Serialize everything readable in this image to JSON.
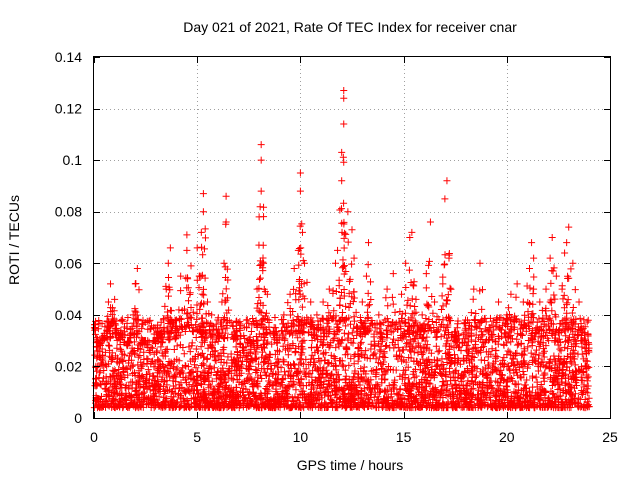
{
  "chart_data": {
    "type": "scatter",
    "title": "Day 021 of 2021, Rate Of TEC Index for receiver cnar",
    "xlabel": "GPS time / hours",
    "ylabel": "ROTI / TECUs",
    "xlim": [
      0,
      25
    ],
    "ylim": [
      0,
      0.14
    ],
    "xticks": [
      0,
      5,
      10,
      15,
      20,
      25
    ],
    "xtick_labels": [
      "0",
      "5",
      "10",
      "15",
      "20",
      "25"
    ],
    "yticks": [
      0,
      0.02,
      0.04,
      0.06,
      0.08,
      0.1,
      0.12,
      0.14
    ],
    "ytick_labels": [
      "0",
      "0.02",
      "0.04",
      "0.06",
      "0.08",
      "0.1",
      "0.12",
      "0.14"
    ],
    "grid": true,
    "marker": "plus",
    "color": "#ff0000",
    "data_extent_hours": [
      0,
      24
    ],
    "baseline_roti": [
      0.004,
      0.03
    ],
    "series": [
      {
        "points": [
          [
            0.2,
            0.026
          ],
          [
            0.5,
            0.032
          ],
          [
            0.7,
            0.045
          ],
          [
            0.8,
            0.052
          ],
          [
            1.0,
            0.046
          ],
          [
            1.3,
            0.034
          ],
          [
            1.6,
            0.028
          ],
          [
            1.9,
            0.04
          ],
          [
            2.0,
            0.052
          ],
          [
            2.1,
            0.058
          ],
          [
            2.5,
            0.03
          ],
          [
            2.9,
            0.03
          ],
          [
            3.2,
            0.035
          ],
          [
            3.5,
            0.05
          ],
          [
            3.6,
            0.06
          ],
          [
            3.7,
            0.066
          ],
          [
            4.0,
            0.038
          ],
          [
            4.2,
            0.055
          ],
          [
            4.5,
            0.065
          ],
          [
            4.5,
            0.071
          ],
          [
            4.7,
            0.059
          ],
          [
            5.0,
            0.066
          ],
          [
            5.1,
            0.055
          ],
          [
            5.2,
            0.072
          ],
          [
            5.3,
            0.08
          ],
          [
            5.3,
            0.087
          ],
          [
            5.5,
            0.045
          ],
          [
            5.7,
            0.04
          ],
          [
            6.0,
            0.038
          ],
          [
            6.3,
            0.06
          ],
          [
            6.4,
            0.086
          ],
          [
            6.4,
            0.076
          ],
          [
            6.8,
            0.033
          ],
          [
            7.2,
            0.022
          ],
          [
            7.6,
            0.028
          ],
          [
            7.9,
            0.05
          ],
          [
            8.0,
            0.078
          ],
          [
            8.1,
            0.088
          ],
          [
            8.1,
            0.1
          ],
          [
            8.1,
            0.106
          ],
          [
            8.2,
            0.067
          ],
          [
            8.4,
            0.048
          ],
          [
            8.8,
            0.035
          ],
          [
            9.2,
            0.04
          ],
          [
            9.5,
            0.048
          ],
          [
            9.7,
            0.058
          ],
          [
            9.9,
            0.065
          ],
          [
            10.0,
            0.088
          ],
          [
            10.0,
            0.095
          ],
          [
            10.1,
            0.072
          ],
          [
            10.2,
            0.06
          ],
          [
            10.5,
            0.045
          ],
          [
            10.8,
            0.04
          ],
          [
            11.1,
            0.045
          ],
          [
            11.4,
            0.05
          ],
          [
            11.7,
            0.06
          ],
          [
            11.8,
            0.065
          ],
          [
            12.0,
            0.092
          ],
          [
            12.0,
            0.103
          ],
          [
            12.1,
            0.114
          ],
          [
            12.1,
            0.124
          ],
          [
            12.1,
            0.127
          ],
          [
            12.3,
            0.08
          ],
          [
            12.5,
            0.073
          ],
          [
            12.6,
            0.062
          ],
          [
            13.0,
            0.045
          ],
          [
            13.2,
            0.055
          ],
          [
            13.3,
            0.068
          ],
          [
            13.8,
            0.04
          ],
          [
            14.2,
            0.05
          ],
          [
            14.5,
            0.056
          ],
          [
            14.9,
            0.048
          ],
          [
            15.1,
            0.06
          ],
          [
            15.3,
            0.07
          ],
          [
            15.4,
            0.072
          ],
          [
            15.6,
            0.046
          ],
          [
            15.9,
            0.04
          ],
          [
            16.1,
            0.056
          ],
          [
            16.3,
            0.076
          ],
          [
            16.5,
            0.045
          ],
          [
            16.9,
            0.052
          ],
          [
            17.0,
            0.085
          ],
          [
            17.1,
            0.092
          ],
          [
            17.2,
            0.062
          ],
          [
            17.6,
            0.035
          ],
          [
            18.0,
            0.038
          ],
          [
            18.4,
            0.05
          ],
          [
            18.7,
            0.06
          ],
          [
            19.2,
            0.035
          ],
          [
            19.6,
            0.045
          ],
          [
            20.0,
            0.04
          ],
          [
            20.2,
            0.048
          ],
          [
            20.5,
            0.052
          ],
          [
            20.8,
            0.045
          ],
          [
            21.1,
            0.058
          ],
          [
            21.2,
            0.068
          ],
          [
            21.3,
            0.062
          ],
          [
            21.6,
            0.045
          ],
          [
            21.9,
            0.05
          ],
          [
            22.1,
            0.062
          ],
          [
            22.2,
            0.07
          ],
          [
            22.4,
            0.055
          ],
          [
            22.8,
            0.064
          ],
          [
            22.9,
            0.068
          ],
          [
            23.0,
            0.074
          ],
          [
            23.2,
            0.06
          ],
          [
            23.5,
            0.045
          ],
          [
            23.7,
            0.03
          ],
          [
            23.9,
            0.022
          ]
        ]
      }
    ]
  }
}
